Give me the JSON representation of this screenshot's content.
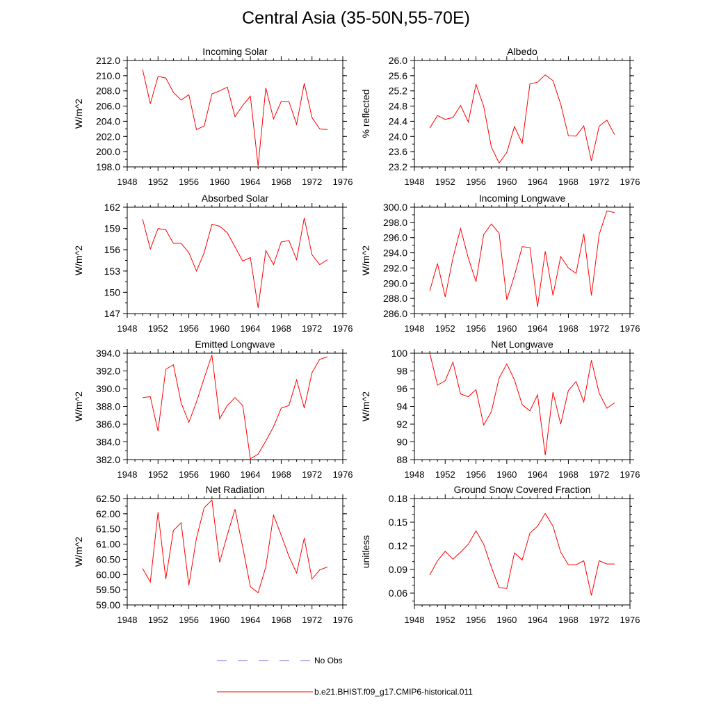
{
  "title": "Central Asia (35-50N,55-70E)",
  "legend": {
    "obs_label": "No Obs",
    "model_label": "b.e21.BHIST.f09_g17.CMIP6-historical.011",
    "obs_color": "#6a6ad8",
    "model_color": "#ff0000"
  },
  "chart_data": [
    {
      "type": "line",
      "title": "Incoming Solar",
      "ylabel": "W/m^2",
      "xlim": [
        1948,
        1976
      ],
      "ylim": [
        198.0,
        212.0
      ],
      "x_ticks": [
        "1948",
        "1952",
        "1956",
        "1960",
        "1964",
        "1968",
        "1972",
        "1976"
      ],
      "y_ticks": [
        "198.0",
        "200.0",
        "202.0",
        "204.0",
        "206.0",
        "208.0",
        "210.0",
        "212.0"
      ],
      "series": [
        {
          "name": "b.e21.BHIST.f09_g17.CMIP6-historical.011",
          "x": [
            1950,
            1951,
            1952,
            1953,
            1954,
            1955,
            1956,
            1957,
            1958,
            1959,
            1960,
            1961,
            1962,
            1963,
            1964,
            1965,
            1966,
            1967,
            1968,
            1969,
            1970,
            1971,
            1972,
            1973,
            1974
          ],
          "values": [
            210.8,
            206.3,
            209.9,
            209.7,
            207.8,
            206.8,
            207.5,
            202.9,
            203.4,
            207.6,
            208.0,
            208.5,
            204.6,
            206.1,
            207.3,
            198.1,
            208.4,
            204.3,
            206.6,
            206.6,
            203.6,
            209.0,
            204.5,
            203.0,
            202.9
          ]
        }
      ]
    },
    {
      "type": "line",
      "title": "Albedo",
      "ylabel": "% reflected",
      "xlim": [
        1948,
        1976
      ],
      "ylim": [
        23.2,
        26.0
      ],
      "x_ticks": [
        "1948",
        "1952",
        "1956",
        "1960",
        "1964",
        "1968",
        "1972",
        "1976"
      ],
      "y_ticks": [
        "23.2",
        "23.6",
        "24.0",
        "24.4",
        "24.8",
        "25.2",
        "25.6",
        "26.0"
      ],
      "series": [
        {
          "name": "b.e21.BHIST.f09_g17.CMIP6-historical.011",
          "x": [
            1950,
            1951,
            1952,
            1953,
            1954,
            1955,
            1956,
            1957,
            1958,
            1959,
            1960,
            1961,
            1962,
            1963,
            1964,
            1965,
            1966,
            1967,
            1968,
            1969,
            1970,
            1971,
            1972,
            1973,
            1974
          ],
          "values": [
            24.22,
            24.55,
            24.45,
            24.5,
            24.82,
            24.38,
            25.37,
            24.8,
            23.72,
            23.3,
            23.58,
            24.26,
            23.82,
            25.38,
            25.43,
            25.62,
            25.47,
            24.85,
            24.02,
            24.01,
            24.28,
            23.35,
            24.27,
            24.43,
            24.05
          ]
        }
      ]
    },
    {
      "type": "line",
      "title": "Absorbed Solar",
      "ylabel": "W/m^2",
      "xlim": [
        1948,
        1976
      ],
      "ylim": [
        147,
        162
      ],
      "x_ticks": [
        "1948",
        "1952",
        "1956",
        "1960",
        "1964",
        "1968",
        "1972",
        "1976"
      ],
      "y_ticks": [
        "147",
        "150",
        "153",
        "156",
        "159",
        "162"
      ],
      "series": [
        {
          "name": "b.e21.BHIST.f09_g17.CMIP6-historical.011",
          "x": [
            1950,
            1951,
            1952,
            1953,
            1954,
            1955,
            1956,
            1957,
            1958,
            1959,
            1960,
            1961,
            1962,
            1963,
            1964,
            1965,
            1966,
            1967,
            1968,
            1969,
            1970,
            1971,
            1972,
            1973,
            1974
          ],
          "values": [
            160.3,
            156.1,
            159.0,
            158.8,
            156.9,
            156.9,
            155.6,
            153.0,
            155.6,
            159.6,
            159.3,
            158.4,
            156.4,
            154.4,
            154.9,
            147.8,
            155.9,
            153.9,
            157.1,
            157.3,
            154.6,
            160.5,
            155.3,
            153.9,
            154.6
          ]
        }
      ]
    },
    {
      "type": "line",
      "title": "Incoming Longwave",
      "ylabel": "W/m^2",
      "xlim": [
        1948,
        1976
      ],
      "ylim": [
        286.0,
        300.0
      ],
      "x_ticks": [
        "1948",
        "1952",
        "1956",
        "1960",
        "1964",
        "1968",
        "1972",
        "1976"
      ],
      "y_ticks": [
        "286.0",
        "288.0",
        "290.0",
        "292.0",
        "294.0",
        "296.0",
        "298.0",
        "300.0"
      ],
      "series": [
        {
          "name": "b.e21.BHIST.f09_g17.CMIP6-historical.011",
          "x": [
            1950,
            1951,
            1952,
            1953,
            1954,
            1955,
            1956,
            1957,
            1958,
            1959,
            1960,
            1961,
            1962,
            1963,
            1964,
            1965,
            1966,
            1967,
            1968,
            1969,
            1970,
            1971,
            1972,
            1973,
            1974
          ],
          "values": [
            289.0,
            292.6,
            288.2,
            293.3,
            297.2,
            293.3,
            290.2,
            296.4,
            297.8,
            296.6,
            287.8,
            291.0,
            294.8,
            294.7,
            286.9,
            294.2,
            288.4,
            293.5,
            292.0,
            291.3,
            296.5,
            288.4,
            296.4,
            299.5,
            299.3
          ]
        }
      ]
    },
    {
      "type": "line",
      "title": "Emitted Longwave",
      "ylabel": "W/m^2",
      "xlim": [
        1948,
        1976
      ],
      "ylim": [
        382.0,
        394.0
      ],
      "x_ticks": [
        "1948",
        "1952",
        "1956",
        "1960",
        "1964",
        "1968",
        "1972",
        "1976"
      ],
      "y_ticks": [
        "382.0",
        "384.0",
        "386.0",
        "388.0",
        "390.0",
        "392.0",
        "394.0"
      ],
      "series": [
        {
          "name": "b.e21.BHIST.f09_g17.CMIP6-historical.011",
          "x": [
            1950,
            1951,
            1952,
            1953,
            1954,
            1955,
            1956,
            1957,
            1958,
            1959,
            1960,
            1961,
            1962,
            1963,
            1964,
            1965,
            1966,
            1967,
            1968,
            1969,
            1970,
            1971,
            1972,
            1973,
            1974
          ],
          "values": [
            389.0,
            389.1,
            385.2,
            392.2,
            392.7,
            388.4,
            386.2,
            388.5,
            391.2,
            393.8,
            386.6,
            388.1,
            389.0,
            388.1,
            382.1,
            382.6,
            384.1,
            385.7,
            387.8,
            388.1,
            391.0,
            387.8,
            391.8,
            393.3,
            393.6
          ]
        }
      ]
    },
    {
      "type": "line",
      "title": "Net Longwave",
      "ylabel": "W/m^2",
      "xlim": [
        1948,
        1976
      ],
      "ylim": [
        88,
        100
      ],
      "x_ticks": [
        "1948",
        "1952",
        "1956",
        "1960",
        "1964",
        "1968",
        "1972",
        "1976"
      ],
      "y_ticks": [
        "88",
        "90",
        "92",
        "94",
        "96",
        "98",
        "100"
      ],
      "series": [
        {
          "name": "b.e21.BHIST.f09_g17.CMIP6-historical.011",
          "x": [
            1950,
            1951,
            1952,
            1953,
            1954,
            1955,
            1956,
            1957,
            1958,
            1959,
            1960,
            1961,
            1962,
            1963,
            1964,
            1965,
            1966,
            1967,
            1968,
            1969,
            1970,
            1971,
            1972,
            1973,
            1974
          ],
          "values": [
            100.0,
            96.4,
            96.9,
            99.0,
            95.4,
            95.1,
            95.9,
            91.9,
            93.4,
            97.2,
            98.8,
            97.0,
            94.2,
            93.5,
            95.3,
            88.5,
            95.6,
            92.0,
            95.8,
            96.8,
            94.5,
            99.2,
            95.5,
            93.8,
            94.4
          ]
        }
      ]
    },
    {
      "type": "line",
      "title": "Net Radiation",
      "ylabel": "W/m^2",
      "xlim": [
        1948,
        1976
      ],
      "ylim": [
        59.0,
        62.5
      ],
      "x_ticks": [
        "1948",
        "1952",
        "1956",
        "1960",
        "1964",
        "1968",
        "1972",
        "1976"
      ],
      "y_ticks": [
        "59.00",
        "59.50",
        "60.00",
        "60.50",
        "61.00",
        "61.50",
        "62.00",
        "62.50"
      ],
      "series": [
        {
          "name": "b.e21.BHIST.f09_g17.CMIP6-historical.011",
          "x": [
            1950,
            1951,
            1952,
            1953,
            1954,
            1955,
            1956,
            1957,
            1958,
            1959,
            1960,
            1961,
            1962,
            1963,
            1964,
            1965,
            1966,
            1967,
            1968,
            1969,
            1970,
            1971,
            1972,
            1973,
            1974
          ],
          "values": [
            60.2,
            59.75,
            62.05,
            59.85,
            61.45,
            61.7,
            59.65,
            61.2,
            62.2,
            62.45,
            60.4,
            61.3,
            62.15,
            60.9,
            59.6,
            59.4,
            60.25,
            61.95,
            61.3,
            60.6,
            60.05,
            61.2,
            59.85,
            60.15,
            60.25
          ]
        }
      ]
    },
    {
      "type": "line",
      "title": "Ground Snow Covered Fraction",
      "ylabel": "unitless",
      "xlim": [
        1948,
        1976
      ],
      "ylim": [
        0.045,
        0.18
      ],
      "x_ticks": [
        "1948",
        "1952",
        "1956",
        "1960",
        "1964",
        "1968",
        "1972",
        "1976"
      ],
      "y_ticks": [
        "0.06",
        "0.09",
        "0.12",
        "0.15",
        "0.18"
      ],
      "series": [
        {
          "name": "b.e21.BHIST.f09_g17.CMIP6-historical.011",
          "x": [
            1950,
            1951,
            1952,
            1953,
            1954,
            1955,
            1956,
            1957,
            1958,
            1959,
            1960,
            1961,
            1962,
            1963,
            1964,
            1965,
            1966,
            1967,
            1968,
            1969,
            1970,
            1971,
            1972,
            1973,
            1974
          ],
          "values": [
            0.083,
            0.101,
            0.113,
            0.103,
            0.112,
            0.122,
            0.139,
            0.122,
            0.093,
            0.067,
            0.066,
            0.111,
            0.102,
            0.136,
            0.145,
            0.161,
            0.145,
            0.112,
            0.096,
            0.096,
            0.101,
            0.057,
            0.101,
            0.097,
            0.097
          ]
        }
      ]
    }
  ]
}
